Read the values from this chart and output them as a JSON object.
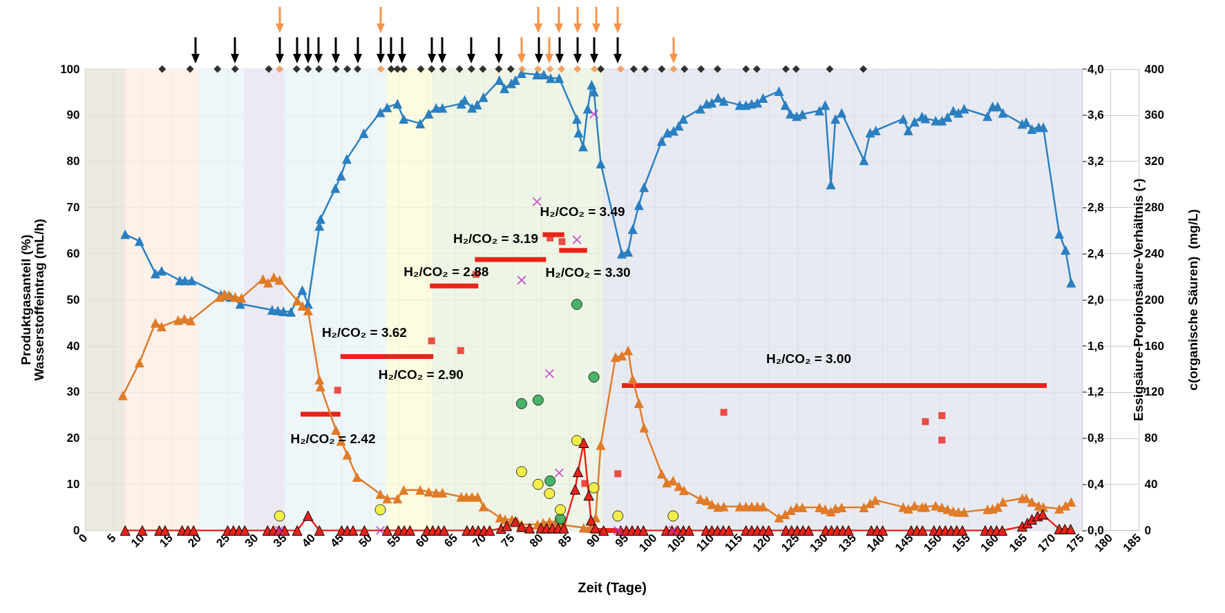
{
  "chart_data": {
    "type": "line",
    "xlabel": "Zeit (Tage)",
    "ylabel": "Produktgasanteil (%)\nWasserstoffeintrag (mL/h)",
    "y2label": "Essigsäure-Propionsäure-Verhältnis (-)",
    "y3label": "c(organische Säuren)  (mg/L)",
    "xlim": [
      0,
      185
    ],
    "xticks": [
      0,
      5,
      10,
      15,
      20,
      25,
      30,
      35,
      40,
      45,
      50,
      55,
      60,
      65,
      70,
      75,
      80,
      85,
      90,
      95,
      100,
      105,
      110,
      115,
      120,
      125,
      130,
      135,
      140,
      145,
      150,
      155,
      160,
      165,
      170,
      175,
      180,
      185
    ],
    "ylim": [
      0,
      100
    ],
    "yticks": [
      0,
      10,
      20,
      30,
      40,
      50,
      60,
      70,
      80,
      90,
      100
    ],
    "y2lim": [
      0,
      4
    ],
    "y2ticks": [
      {
        "value": 0,
        "label": "0,0"
      },
      {
        "value": 0.4,
        "label": "0,4"
      },
      {
        "value": 0.8,
        "label": "0,8"
      },
      {
        "value": 1.2,
        "label": "1,2"
      },
      {
        "value": 1.6,
        "label": "1,6"
      },
      {
        "value": 2,
        "label": "2,0"
      },
      {
        "value": 2.4,
        "label": "2,4"
      },
      {
        "value": 2.8,
        "label": "2,8"
      },
      {
        "value": 3.2,
        "label": "3,2"
      },
      {
        "value": 3.6,
        "label": "3,6"
      },
      {
        "value": 4,
        "label": "4,0"
      }
    ],
    "y3lim": [
      0,
      400
    ],
    "y3ticks": [
      0,
      40,
      80,
      120,
      160,
      200,
      240,
      280,
      320,
      360,
      400
    ],
    "grid": true,
    "bands": [
      {
        "axis": "x",
        "from": 0,
        "to": 7,
        "color": "#e6e3d8"
      },
      {
        "axis": "x",
        "from": 7,
        "to": 20,
        "color": "#fdeee4"
      },
      {
        "axis": "x",
        "from": 20,
        "to": 35,
        "color": "#eaf4f7"
      },
      {
        "axis": "x",
        "from": 28,
        "to": 35,
        "color": "#ece6f1"
      },
      {
        "axis": "x",
        "from": 35,
        "to": 53,
        "color": "#eaf4f7"
      },
      {
        "axis": "x",
        "from": 53,
        "to": 61,
        "color": "#fcfbd8"
      },
      {
        "axis": "x",
        "from": 61,
        "to": 91,
        "color": "#eaf3e0"
      },
      {
        "axis": "x",
        "from": 91,
        "to": 175,
        "color": "#e2e5ef"
      }
    ],
    "annotations": [
      {
        "text": "H₂/CO₂ = 2.42",
        "x": 41.3,
        "y": 25.2
      },
      {
        "text": "H₂/CO₂ = 3.62",
        "x": 49,
        "y": 37.7
      },
      {
        "text": "H₂/CO₂ = 2.90",
        "x": 57,
        "y": 37.7
      },
      {
        "text": "H₂/CO₂ = 2.88",
        "x": 64.7,
        "y": 53.0
      },
      {
        "text": "H₂/CO₂ = 3.19",
        "x": 74.6,
        "y": 58.7
      },
      {
        "text": "H₂/CO₂ = 3.49",
        "x": 82.2,
        "y": 64.1
      },
      {
        "text": "H₂/CO₂ = 3.30",
        "x": 85.6,
        "y": 60.7
      },
      {
        "text": "H₂/CO₂ = 3.00",
        "x": 131.5,
        "y": 31.4
      }
    ],
    "series": [
      {
        "color": "#e8231a",
        "line_style": "solid",
        "marker": "none",
        "x": [
          37.8,
          44.8
        ],
        "values": [
          25.2,
          25.2
        ]
      },
      {
        "color": "#e8231a",
        "line_style": "solid",
        "marker": "none",
        "x": [
          44.8,
          61.1
        ],
        "values": [
          37.7,
          37.7
        ]
      },
      {
        "color": "#e8231a",
        "line_style": "solid",
        "marker": "none",
        "x": [
          60.5,
          69.0
        ],
        "values": [
          53.0,
          53.0
        ]
      },
      {
        "color": "#e8231a",
        "line_style": "solid",
        "marker": "none",
        "x": [
          68.4,
          80.9
        ],
        "values": [
          58.7,
          58.7
        ]
      },
      {
        "color": "#e8231a",
        "line_style": "solid",
        "marker": "none",
        "x": [
          80.3,
          84.1
        ],
        "values": [
          64.1,
          64.1
        ]
      },
      {
        "color": "#e8231a",
        "line_style": "solid",
        "marker": "none",
        "x": [
          83.2,
          88.1
        ],
        "values": [
          60.7,
          60.7
        ]
      },
      {
        "color": "#e8231a",
        "line_style": "solid",
        "marker": "none",
        "x": [
          88.1,
          93.5
        ],
        "values": [
          0,
          0
        ]
      },
      {
        "color": "#e8231a",
        "line_style": "solid",
        "marker": "none",
        "x": [
          94.2,
          168.8
        ],
        "values": [
          31.4,
          31.4
        ]
      },
      {
        "type": "scatter",
        "color": "#e8231a",
        "marker": "square",
        "x": [
          44.3,
          60.8,
          65.9,
          68.6,
          81.6,
          83.7,
          87.7,
          93.5,
          112.1,
          147.5,
          150.4,
          150.4
        ],
        "values": [
          30.4,
          41.1,
          39.0,
          55.5,
          63.4,
          62.6,
          10.2,
          12.3,
          25.6,
          23.6,
          24.9,
          19.6
        ]
      },
      {
        "color": "#2a7fc1",
        "marker": "triangle",
        "line_style": "solid",
        "x": [
          7,
          9.5,
          12.3,
          13.4,
          16.6,
          17.5,
          18.7,
          23.8,
          24.6,
          25.5,
          27.2,
          32.8,
          33.8,
          34.8,
          36.1,
          38.1,
          39.1,
          41.1,
          41.3,
          43.9,
          44.9,
          45.9,
          48.9,
          51.8,
          53.0,
          54.8,
          55.9,
          58.8,
          60.3,
          61.6,
          62.7,
          66.0,
          66.6,
          67.9,
          68.8,
          69.9,
          72.7,
          73.6,
          74.8,
          75.5,
          76.6,
          79.3,
          80.5,
          81.7,
          83.2,
          86.3,
          86.6,
          87.4,
          88.2,
          88.9,
          89.3,
          90.5,
          94.2,
          95.3,
          96.1,
          97.2,
          98.1,
          101.2,
          102.2,
          103.3,
          104.2,
          105.0,
          108.0,
          109.1,
          110.0,
          111.1,
          112.1,
          114.9,
          116.0,
          117.0,
          118.0,
          119.0,
          121.8,
          122.9,
          123.8,
          124.9,
          125.9,
          128.9,
          129.9,
          130.9,
          131.7,
          132.8,
          136.7,
          137.8,
          138.8,
          143.6,
          144.5,
          145.6,
          146.9,
          147.5,
          149.3,
          150.4,
          151.4,
          152.4,
          153.3,
          154.3,
          158.4,
          159.3,
          160.2,
          161.1,
          164.5,
          165.2,
          166.2,
          167.4,
          168.2,
          171.0,
          172.1,
          173.1
        ],
        "values": [
          64.2,
          62.7,
          55.7,
          56.3,
          54.2,
          54.2,
          54.2,
          51.1,
          50.9,
          50.6,
          49.1,
          47.8,
          47.7,
          47.5,
          47.4,
          52.1,
          49.1,
          66.0,
          67.5,
          74.2,
          76.9,
          80.5,
          86.1,
          90.6,
          91.7,
          92.5,
          89.2,
          88.2,
          90.3,
          91.6,
          91.6,
          92.5,
          93.3,
          91.6,
          92.3,
          93.9,
          97.6,
          95.8,
          96.9,
          97.6,
          99.1,
          98.8,
          98.8,
          98.0,
          98.0,
          89.2,
          86.2,
          83.2,
          91.4,
          96.6,
          95.1,
          79.5,
          60.0,
          60.4,
          65.3,
          70.5,
          74.4,
          84.4,
          86.2,
          86.6,
          87.7,
          89.2,
          91.4,
          92.5,
          92.7,
          93.8,
          93.1,
          92.2,
          92.2,
          92.5,
          92.7,
          93.7,
          95.2,
          92.2,
          90.3,
          89.8,
          90.2,
          91.0,
          92.2,
          75.0,
          89.2,
          90.5,
          80.2,
          86.2,
          86.7,
          89.2,
          86.7,
          88.6,
          89.7,
          89.3,
          88.8,
          88.8,
          89.6,
          91.0,
          90.5,
          91.4,
          89.8,
          91.9,
          91.9,
          90.5,
          88.1,
          88.5,
          87.0,
          87.4,
          87.4,
          64.3,
          60.8,
          53.7
        ]
      },
      {
        "color": "#e07b28",
        "marker": "triangle",
        "line_style": "solid",
        "x": [
          6.6,
          9.5,
          12.3,
          13.4,
          16.3,
          17.4,
          18.5,
          23.6,
          24.4,
          25.2,
          26.3,
          27.4,
          31.2,
          32.1,
          33.1,
          34.1,
          37.2,
          38.1,
          39.1,
          41.1,
          41.3,
          44.0,
          44.9,
          46.0,
          47.7,
          51.8,
          53.0,
          54.8,
          55.9,
          58.8,
          60.3,
          61.6,
          62.7,
          66.0,
          66.9,
          67.9,
          68.9,
          69.9,
          72.8,
          73.7,
          74.9,
          75.8,
          76.6,
          79.4,
          80.4,
          81.5,
          82.7,
          83.9,
          87.5,
          88.7,
          89.6,
          90.5,
          93.1,
          94.2,
          95.3,
          96.1,
          97.2,
          98.1,
          101.2,
          102.1,
          103.2,
          104.2,
          105.1,
          108.0,
          109.1,
          110.0,
          111.1,
          112.1,
          114.9,
          116.0,
          117.0,
          118.0,
          119.0,
          121.8,
          122.9,
          123.9,
          124.9,
          125.9,
          128.9,
          129.9,
          130.9,
          131.7,
          132.8,
          136.7,
          137.8,
          138.7,
          143.6,
          144.5,
          145.6,
          146.9,
          147.5,
          149.3,
          150.4,
          151.4,
          152.4,
          153.3,
          154.3,
          158.4,
          159.3,
          160.2,
          161.1,
          164.5,
          165.2,
          166.2,
          167.4,
          168.2,
          171.0,
          172.1,
          173.1
        ],
        "values": [
          29.3,
          36.4,
          45.0,
          44.2,
          45.6,
          45.9,
          45.5,
          50.6,
          51.2,
          51.0,
          50.6,
          50.4,
          54.5,
          53.7,
          54.9,
          54.3,
          49.8,
          48.7,
          47.7,
          32.7,
          31.2,
          21.8,
          19.4,
          16.4,
          11.6,
          7.9,
          6.9,
          6.9,
          8.8,
          8.8,
          8.4,
          8.2,
          8.2,
          7.3,
          7.3,
          7.3,
          7.3,
          5.2,
          2.8,
          2.4,
          2.4,
          2.0,
          1.3,
          1.3,
          1.7,
          1.9,
          1.9,
          1.2,
          0.6,
          0.6,
          2.8,
          18.5,
          37.6,
          37.9,
          39.0,
          32.8,
          27.6,
          22.3,
          12.3,
          10.4,
          10.8,
          9.6,
          8.7,
          6.8,
          6.5,
          5.7,
          5.1,
          5.2,
          5.2,
          5.2,
          5.2,
          5.2,
          5.2,
          2.8,
          3.5,
          4.4,
          5.0,
          5.0,
          5.0,
          4.6,
          4.1,
          4.8,
          5.0,
          5.0,
          5.9,
          6.6,
          5.1,
          4.7,
          5.4,
          5.1,
          5.1,
          5.4,
          5.0,
          4.6,
          4.2,
          4.0,
          4.0,
          4.6,
          4.7,
          5.1,
          6.2,
          7.0,
          7.0,
          6.2,
          5.4,
          5.1,
          4.7,
          5.4,
          6.2
        ]
      },
      {
        "color": "#e8231a",
        "marker": "triangle",
        "line_style": "solid",
        "x": [
          7,
          10,
          13,
          14,
          17,
          18,
          19,
          25,
          26,
          27,
          28,
          32,
          33,
          34,
          35,
          37.2,
          39.1,
          41.1,
          45,
          46,
          47,
          49,
          53,
          55,
          56,
          57,
          60,
          61,
          62,
          63,
          67,
          68,
          69,
          70,
          71,
          73,
          74,
          75.5,
          76.6,
          78,
          80,
          81,
          82,
          83,
          84,
          86,
          86.5,
          87.5,
          88.4,
          88.8,
          89.5,
          91,
          94,
          95,
          96,
          97,
          98,
          102,
          103,
          104,
          105,
          106,
          109,
          110,
          111,
          112,
          113,
          116,
          117,
          118,
          119,
          120,
          123,
          124,
          125,
          126,
          127,
          130,
          131,
          132,
          133,
          134,
          138,
          139,
          140,
          145,
          146,
          147,
          149,
          150,
          151,
          152,
          153,
          154,
          158,
          159,
          160,
          161,
          164.5,
          165.4,
          166.2,
          167.2,
          168.1,
          171,
          172,
          173
        ],
        "values": [
          0,
          0,
          0,
          0,
          0,
          0,
          0,
          0,
          0,
          0,
          0,
          0,
          0,
          0,
          0,
          0,
          3.2,
          0,
          0,
          0,
          0,
          0,
          0,
          0,
          0,
          0,
          0,
          0,
          0,
          0,
          0,
          0,
          0,
          0,
          0,
          0.4,
          1,
          1.9,
          0.8,
          0.5,
          0.5,
          0.5,
          0.5,
          0.5,
          0.5,
          8.9,
          12.7,
          19,
          7.6,
          2.2,
          0.5,
          0,
          0,
          0,
          0,
          0,
          0,
          0,
          0,
          0,
          0,
          0,
          0,
          0,
          0,
          0,
          0,
          0,
          0,
          0,
          0,
          0,
          0,
          0,
          0,
          0,
          0,
          0,
          0,
          0,
          0,
          0,
          0,
          0,
          0,
          0,
          0,
          0,
          0,
          0,
          0,
          0,
          0,
          0,
          0,
          0,
          0,
          0,
          0.9,
          1.6,
          2.4,
          3.1,
          3.5,
          0.3,
          0.3,
          0.3
        ]
      },
      {
        "type": "scatter",
        "axis": "y3",
        "color": "#1fa34a",
        "marker": "circle",
        "x": [
          76.6,
          79.5,
          81.6,
          83.4,
          86.3,
          89.3
        ],
        "values": [
          110,
          113,
          43,
          10,
          196,
          133
        ]
      },
      {
        "type": "scatter",
        "axis": "y3",
        "color": "#f2ee22",
        "marker": "circle",
        "x": [
          34.1,
          51.8,
          76.6,
          79.5,
          81.5,
          83.4,
          86.3,
          89.3,
          93.5,
          103.2
        ],
        "values": [
          12.6,
          18,
          51,
          40,
          32,
          18,
          78,
          37,
          12.6,
          12.6
        ]
      },
      {
        "type": "scatter",
        "axis": "y2",
        "color": "#c030c8",
        "marker": "cross",
        "x": [
          34.1,
          51.8,
          76.6,
          79.3,
          81.5,
          83.2,
          86.3,
          89.3,
          93.5,
          103.2
        ],
        "values": [
          0,
          0,
          2.17,
          2.85,
          1.36,
          0.5,
          2.52,
          3.61,
          0,
          0
        ]
      },
      {
        "type": "scatter",
        "color": "#000000",
        "marker": "diamond",
        "x": [
          13.5,
          18.4,
          23.2,
          26.3,
          32.2,
          37.1,
          39.1,
          41.0,
          44.0,
          46.0,
          47.8,
          53.7,
          54.8,
          55.9,
          58.9,
          60.8,
          62.8,
          65.7,
          67.8,
          69.8,
          72.6,
          74.7,
          90.5,
          96.3,
          98.3,
          101.2,
          105.2,
          108.1,
          111.0,
          116.0,
          117.9,
          123.0,
          124.8,
          130.7,
          136.6
        ],
        "values": [
          100,
          100,
          100,
          100,
          100,
          100,
          100,
          100,
          100,
          100,
          100,
          100,
          100,
          100,
          100,
          100,
          100,
          100,
          100,
          100,
          100,
          100,
          100,
          100,
          100,
          100,
          100,
          100,
          100,
          100,
          100,
          100,
          100,
          100,
          100
        ]
      },
      {
        "type": "scatter",
        "color": "#f0914a",
        "marker": "diamond",
        "x": [
          34.1,
          51.9,
          76.7,
          79.5,
          81.6,
          83.6,
          86.4,
          89.4,
          94.0,
          103.3
        ],
        "values": [
          100,
          100,
          100,
          100,
          100,
          100,
          100,
          100,
          100,
          100
        ]
      }
    ]
  }
}
